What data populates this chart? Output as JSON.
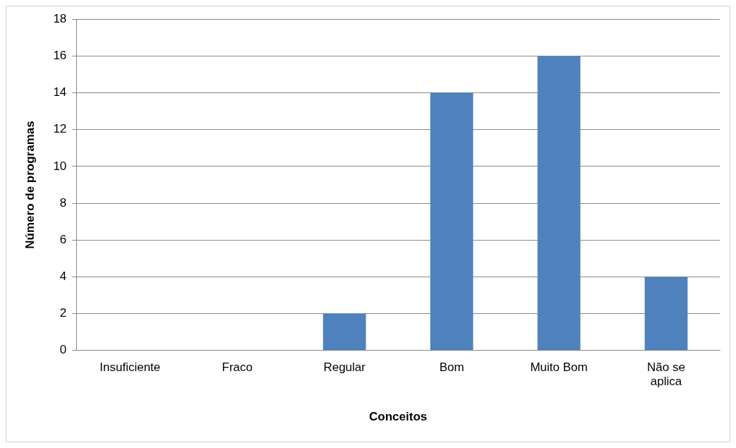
{
  "chart_data": {
    "type": "bar",
    "xlabel": "Conceitos",
    "ylabel": "Número de programas",
    "categories": [
      "Insuficiente",
      "Fraco",
      "Regular",
      "Bom",
      "Muito Bom",
      "Não se aplica"
    ],
    "values": [
      0,
      0,
      2,
      14,
      16,
      4
    ],
    "color": "#4f81bd",
    "ylim": [
      0,
      18
    ],
    "yticks": [
      0,
      2,
      4,
      6,
      8,
      10,
      12,
      14,
      16,
      18
    ],
    "grid": "y",
    "legend": false
  }
}
